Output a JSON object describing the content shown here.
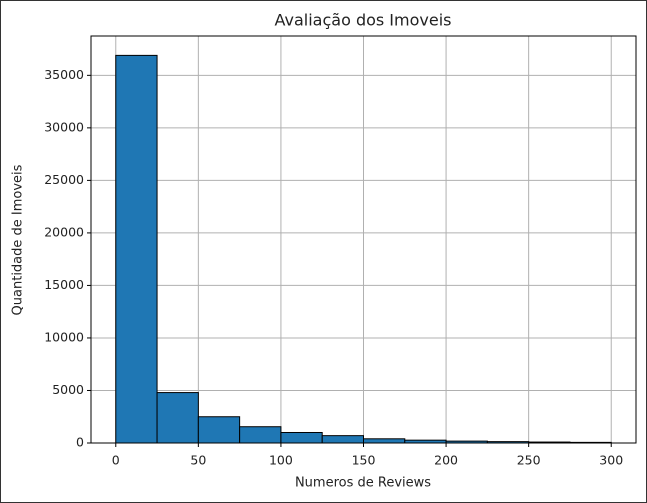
{
  "chart_data": {
    "type": "histogram",
    "title": "Avaliação dos Imoveis",
    "x_label": "Numeros de Reviews",
    "y_label": "Quantidade de Imoveis",
    "bins": [
      0,
      25,
      50,
      75,
      100,
      125,
      150,
      175,
      200,
      225,
      250,
      275,
      300
    ],
    "values": [
      36900,
      4800,
      2500,
      1550,
      1000,
      700,
      400,
      270,
      180,
      130,
      90,
      60
    ],
    "color": "#1f77b4",
    "edgecolor": "#000000",
    "xlim": [
      -15,
      315
    ],
    "ylim": [
      0,
      38745
    ],
    "xticks": [
      0,
      50,
      100,
      150,
      200,
      250,
      300
    ],
    "yticks": [
      0,
      5000,
      10000,
      15000,
      20000,
      25000,
      30000,
      35000
    ],
    "grid": true
  }
}
